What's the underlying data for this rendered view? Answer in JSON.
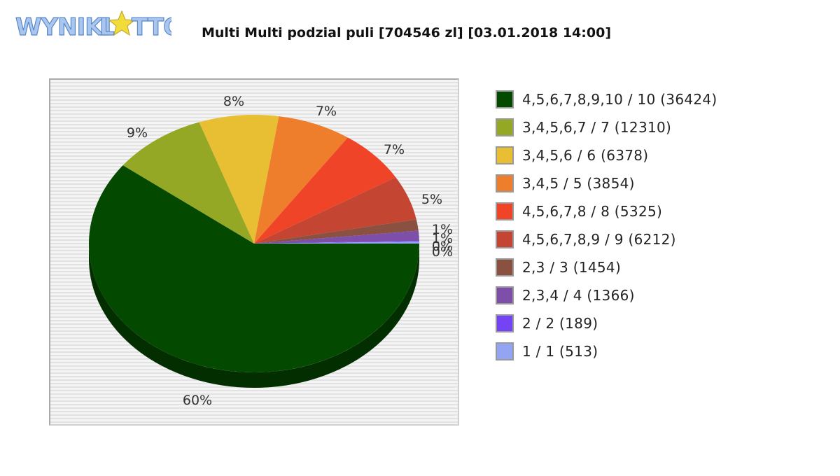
{
  "logo": {
    "text": "WYNIKI LOTTO"
  },
  "chart_data": {
    "type": "pie",
    "title": "Multi Multi podzial puli [704546 zl] [03.01.2018 14:00]",
    "slices": [
      {
        "label": "4,5,6,7,8,9,10 / 10 (36424)",
        "value": 36424,
        "pct_label": "60%",
        "color": "#034a00"
      },
      {
        "label": "3,4,5,6,7 / 7 (12310)",
        "value": 12310,
        "pct_label": "9%",
        "color": "#94a826"
      },
      {
        "label": "3,4,5,6 / 6 (6378)",
        "value": 6378,
        "pct_label": "8%",
        "color": "#e8be32"
      },
      {
        "label": "3,4,5 / 5 (3854)",
        "value": 3854,
        "pct_label": "7%",
        "color": "#ee7d2c"
      },
      {
        "label": "4,5,6,7,8 / 8 (5325)",
        "value": 5325,
        "pct_label": "7%",
        "color": "#f04428"
      },
      {
        "label": "4,5,6,7,8,9 / 9 (6212)",
        "value": 6212,
        "pct_label": "5%",
        "color": "#c44632"
      },
      {
        "label": "2,3 / 3 (1454)",
        "value": 1454,
        "pct_label": "1%",
        "color": "#8a5040"
      },
      {
        "label": "2,3,4 / 4 (1366)",
        "value": 1366,
        "pct_label": "1%",
        "color": "#7d4fa8"
      },
      {
        "label": "2 / 2 (189)",
        "value": 189,
        "pct_label": "0%",
        "color": "#7444f4"
      },
      {
        "label": "1 / 1 (513)",
        "value": 513,
        "pct_label": "0%",
        "color": "#92a4f2"
      }
    ],
    "display_fractions": [
      0.594,
      0.092,
      0.078,
      0.072,
      0.068,
      0.056,
      0.014,
      0.0125,
      0.001,
      0.0025
    ]
  }
}
